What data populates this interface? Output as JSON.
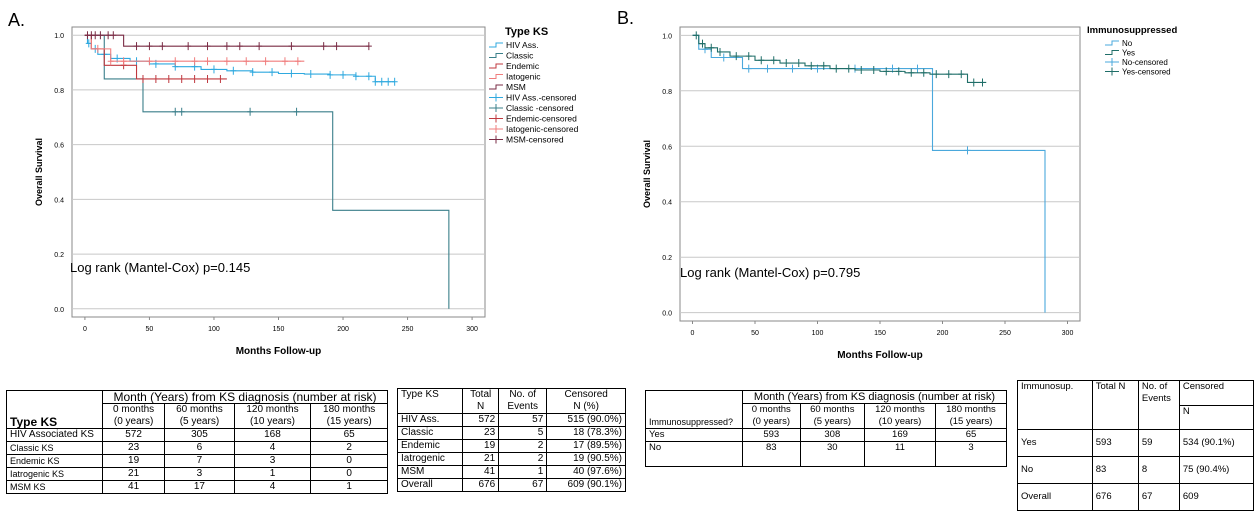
{
  "panels": {
    "a": {
      "label": "A.",
      "annotation": "Log rank (Mantel-Cox) p=0.145",
      "legend_title": "Type KS",
      "legend_items": [
        {
          "label": "HIV Ass.",
          "color": "#2fa9df",
          "kind": "step"
        },
        {
          "label": "Classic",
          "color": "#3a7f8a",
          "kind": "step"
        },
        {
          "label": "Endemic",
          "color": "#c0393f",
          "kind": "step"
        },
        {
          "label": "Iatogenic",
          "color": "#f07d7d",
          "kind": "step"
        },
        {
          "label": "MSM",
          "color": "#7a2b44",
          "kind": "step"
        },
        {
          "label": "HIV Ass.-censored",
          "color": "#2fa9df",
          "kind": "cross"
        },
        {
          "label": "Classic   -censored",
          "color": "#3a7f8a",
          "kind": "cross"
        },
        {
          "label": "Endemic-censored",
          "color": "#c0393f",
          "kind": "cross"
        },
        {
          "label": "Iatogenic-censored",
          "color": "#f07d7d",
          "kind": "cross"
        },
        {
          "label": "MSM-censored",
          "color": "#7a2b44",
          "kind": "cross"
        }
      ]
    },
    "b": {
      "label": "B.",
      "annotation": "Log rank (Mantel-Cox) p=0.795",
      "legend_title": "Immunosuppressed",
      "legend_items": [
        {
          "label": "No",
          "color": "#4aa8dc",
          "kind": "step"
        },
        {
          "label": "Yes",
          "color": "#1f6e68",
          "kind": "step"
        },
        {
          "label": "No-censored",
          "color": "#4aa8dc",
          "kind": "cross"
        },
        {
          "label": "Yes-censored",
          "color": "#1f6e68",
          "kind": "cross"
        }
      ]
    }
  },
  "chart_data": [
    {
      "type": "line",
      "title": "",
      "xlabel": "Months Follow-up",
      "ylabel": "Overall Survival",
      "xlim": [
        -10,
        310
      ],
      "ylim": [
        -0.03,
        1.03
      ],
      "x_ticks": [
        "0",
        "50",
        "100",
        "150",
        "200",
        "250",
        "300"
      ],
      "y_ticks": [
        "0.0",
        "0.2",
        "0.4",
        "0.6",
        "0.8",
        "1.0"
      ],
      "grid": true,
      "legend_position": "right",
      "series": [
        {
          "name": "HIV Ass.",
          "color": "#2fa9df",
          "x": [
            0,
            2,
            5,
            10,
            20,
            35,
            50,
            70,
            90,
            110,
            130,
            150,
            170,
            190,
            210,
            225,
            240
          ],
          "y": [
            1.0,
            0.97,
            0.95,
            0.93,
            0.915,
            0.905,
            0.895,
            0.885,
            0.875,
            0.87,
            0.865,
            0.86,
            0.858,
            0.855,
            0.85,
            0.83,
            0.83
          ],
          "censored_x": [
            3,
            8,
            15,
            25,
            40,
            55,
            70,
            85,
            100,
            115,
            130,
            145,
            160,
            175,
            190,
            200,
            210,
            220,
            225,
            230,
            235,
            240
          ]
        },
        {
          "name": "Classic",
          "color": "#3a7f8a",
          "x": [
            0,
            15,
            45,
            192,
            282
          ],
          "y": [
            1.0,
            0.84,
            0.72,
            0.36,
            0.0
          ],
          "censored_x": [
            70,
            75,
            128,
            164
          ]
        },
        {
          "name": "Endemic",
          "color": "#c0393f",
          "x": [
            0,
            5,
            15,
            40,
            110
          ],
          "y": [
            1.0,
            0.95,
            0.89,
            0.84,
            0.84
          ],
          "censored_x": [
            30,
            45,
            55,
            65,
            75,
            85,
            95,
            105
          ]
        },
        {
          "name": "Iatogenic",
          "color": "#f07d7d",
          "x": [
            0,
            5,
            20,
            170
          ],
          "y": [
            1.0,
            0.95,
            0.905,
            0.905
          ],
          "censored_x": [
            10,
            20,
            30,
            50,
            70,
            85,
            95,
            110,
            125,
            140,
            155,
            165
          ]
        },
        {
          "name": "MSM",
          "color": "#7a2b44",
          "x": [
            0,
            30,
            220
          ],
          "y": [
            1.0,
            0.96,
            0.96
          ],
          "censored_x": [
            2,
            5,
            8,
            12,
            18,
            22,
            40,
            50,
            60,
            80,
            95,
            110,
            120,
            135,
            160,
            185,
            195,
            220
          ]
        }
      ]
    },
    {
      "type": "line",
      "title": "",
      "xlabel": "Months Follow-up",
      "ylabel": "Overall Survival",
      "xlim": [
        -10,
        310
      ],
      "ylim": [
        -0.03,
        1.03
      ],
      "x_ticks": [
        "0",
        "50",
        "100",
        "150",
        "200",
        "250",
        "300"
      ],
      "y_ticks": [
        "0.0",
        "0.2",
        "0.4",
        "0.6",
        "0.8",
        "1.0"
      ],
      "grid": true,
      "legend_position": "right",
      "series": [
        {
          "name": "No",
          "color": "#4aa8dc",
          "x": [
            0,
            5,
            15,
            40,
            192,
            282
          ],
          "y": [
            1.0,
            0.95,
            0.92,
            0.88,
            0.585,
            0.0
          ],
          "censored_x": [
            10,
            25,
            45,
            60,
            80,
            100,
            130,
            160,
            180,
            220
          ]
        },
        {
          "name": "Yes",
          "color": "#1f6e68",
          "x": [
            0,
            5,
            10,
            20,
            30,
            50,
            70,
            90,
            110,
            130,
            150,
            170,
            190,
            210,
            220,
            235
          ],
          "y": [
            1.0,
            0.97,
            0.955,
            0.94,
            0.925,
            0.91,
            0.9,
            0.89,
            0.88,
            0.875,
            0.87,
            0.865,
            0.86,
            0.86,
            0.83,
            0.83
          ],
          "censored_x": [
            3,
            8,
            15,
            22,
            35,
            45,
            55,
            65,
            75,
            85,
            95,
            105,
            115,
            125,
            135,
            145,
            155,
            165,
            175,
            185,
            195,
            205,
            215,
            225,
            232
          ]
        }
      ]
    }
  ],
  "table_a_risk": {
    "top_header": "Month (Years) from KS diagnosis (number at risk)",
    "row_header": "Type KS",
    "columns": [
      {
        "line1": "0 months",
        "line2": "(0 years)"
      },
      {
        "line1": "60 months",
        "line2": "(5 years)"
      },
      {
        "line1": "120 months",
        "line2": "(10 years)"
      },
      {
        "line1": "180 months",
        "line2": "(15 years)"
      }
    ],
    "rows": [
      {
        "label": "HIV Associated KS",
        "values": [
          "572",
          "305",
          "168",
          "65"
        ]
      },
      {
        "label": "Classic KS",
        "values": [
          "23",
          "6",
          "4",
          "2"
        ]
      },
      {
        "label": "Endemic KS",
        "values": [
          "19",
          "7",
          "3",
          "0"
        ]
      },
      {
        "label": "Iatrogenic KS",
        "values": [
          "21",
          "3",
          "1",
          "0"
        ]
      },
      {
        "label": "MSM KS",
        "values": [
          "41",
          "17",
          "4",
          "1"
        ]
      }
    ]
  },
  "table_a_events": {
    "headers": [
      "Type KS",
      "Total",
      "No. of",
      "Censored"
    ],
    "subheaders": [
      "",
      "N",
      "Events",
      "N (%)"
    ],
    "rows": [
      [
        "HIV Ass.",
        "572",
        "57",
        "515 (90.0%)"
      ],
      [
        "Classic",
        "23",
        "5",
        "18 (78.3%)"
      ],
      [
        "Endemic",
        "19",
        "2",
        "17 (89.5%)"
      ],
      [
        "Iatrogenic",
        "21",
        "2",
        "19 (90.5%)"
      ],
      [
        "MSM",
        "41",
        "1",
        "40 (97.6%)"
      ],
      [
        "Overall",
        "676",
        "67",
        "609 (90.1%)"
      ]
    ]
  },
  "table_b_risk": {
    "top_header": "Month (Years) from KS diagnosis (number at risk)",
    "row_header": "Immunosuppressed?",
    "columns": [
      {
        "line1": "0 months",
        "line2": "(0 years)"
      },
      {
        "line1": "60 months",
        "line2": "(5 years)"
      },
      {
        "line1": "120 months",
        "line2": "(10 years)"
      },
      {
        "line1": "180 months",
        "line2": "(15 years)"
      }
    ],
    "rows": [
      {
        "label": "Yes",
        "values": [
          "593",
          "308",
          "169",
          "65"
        ]
      },
      {
        "label": "No",
        "values": [
          "83",
          "30",
          "11",
          "3"
        ]
      }
    ]
  },
  "table_b_events": {
    "headers": [
      "Immunosup.",
      "Total N",
      "No. of Events",
      "Censored"
    ],
    "censored_sub": "N",
    "rows": [
      [
        "Yes",
        "593",
        "59",
        "534 (90.1%)"
      ],
      [
        "No",
        "83",
        "8",
        "75 (90.4%)"
      ],
      [
        "Overall",
        "676",
        "67",
        "609"
      ]
    ]
  }
}
